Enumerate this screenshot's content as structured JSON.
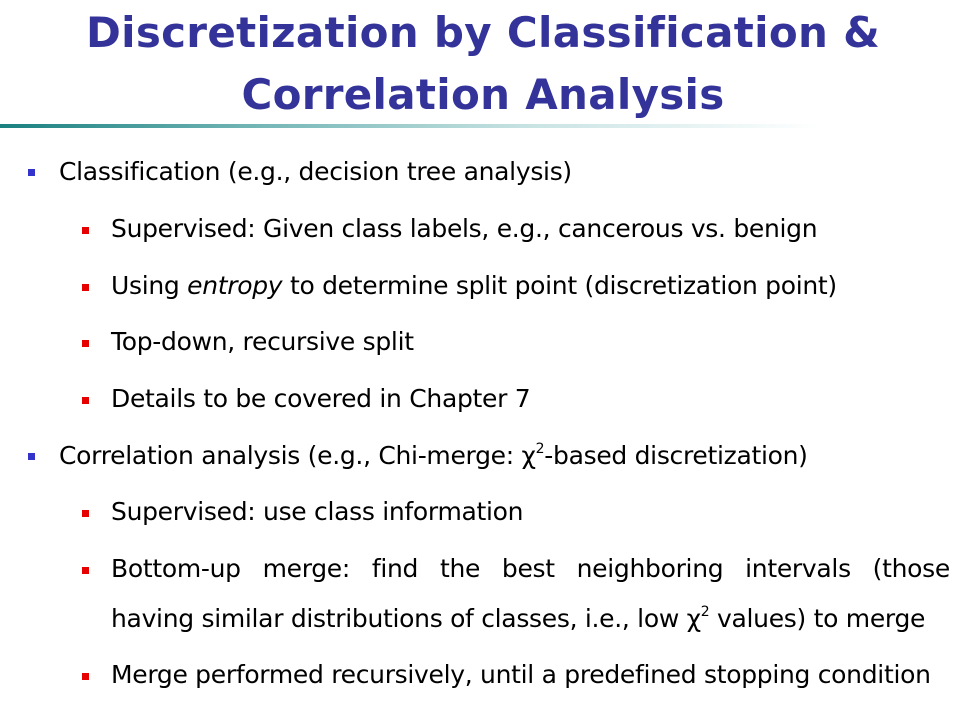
{
  "slide": {
    "title_line1": "Discretization by Classification &",
    "title_line2": "Correlation Analysis"
  },
  "bullets": {
    "classification": "Classification (e.g., decision tree analysis)",
    "supervised_labels": "Supervised: Given class labels, e.g., cancerous vs. benign",
    "entropy_pre": "Using ",
    "entropy_em": "entropy",
    "entropy_post": " to determine split point (discretization point)",
    "topdown": "Top-down, recursive split",
    "details": "Details to be covered in Chapter 7",
    "correlation_pre": "Correlation analysis (e.g., Chi-merge: χ",
    "correlation_sup": "2",
    "correlation_post": "-based discretization)",
    "supervised_info": "Supervised: use class information",
    "bottomup_words": [
      "Bottom-up",
      "merge:",
      "find",
      "the",
      "best",
      "neighboring",
      "intervals",
      "(those"
    ],
    "bottomup_line2_pre": "having similar distributions of classes, i.e., low χ",
    "bottomup_line2_sup": "2",
    "bottomup_line2_post": " values) to merge",
    "merge_recursive": "Merge performed recursively, until a predefined stopping condition"
  },
  "colors": {
    "title": "#33339a",
    "level1_bullet": "#3333cc",
    "level2_bullet": "#e60000"
  }
}
